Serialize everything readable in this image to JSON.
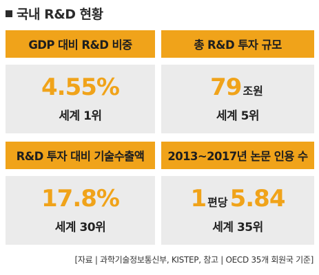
{
  "title": "국내 R&D 현황",
  "cards": [
    {
      "header": "GDP 대비 R&D 비중",
      "value": "4.55%",
      "rank": "세계 1위"
    },
    {
      "header": "총 R&D 투자 규모",
      "value": "79",
      "value_unit": "조원",
      "rank": "세계 5위"
    },
    {
      "header": "R&D 투자 대비 기술수출액",
      "value": "17.8%",
      "rank": "세계 30위"
    },
    {
      "header": "2013~2017년 논문 인용 수",
      "value_prefix": "1",
      "value_unit": "편당",
      "value": "5.84",
      "rank": "세계 35위"
    }
  ],
  "source": "[자료 | 과학기술정보통신부, KISTEP, 참고 | OECD 35개 회원국 기준]",
  "colors": {
    "accent": "#f0a31a",
    "panel": "#ebebeb",
    "text": "#222222"
  }
}
